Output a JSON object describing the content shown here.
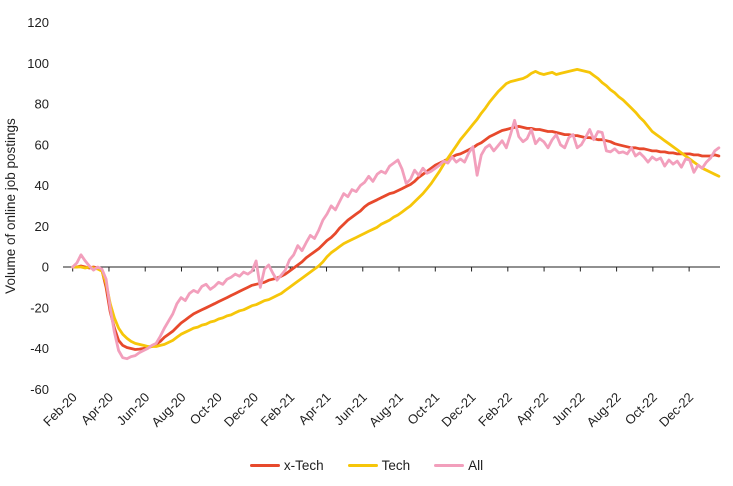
{
  "chart_data": {
    "type": "line",
    "title": "",
    "ylabel": "Volume of online job postings",
    "xlabel": "",
    "ylim": [
      -60,
      120
    ],
    "yticks": [
      120,
      100,
      80,
      60,
      40,
      20,
      0,
      -20,
      -40,
      -60
    ],
    "x_tick_labels": [
      "Feb-20",
      "Apr-20",
      "Jun-20",
      "Aug-20",
      "Oct-20",
      "Dec-20",
      "Feb-21",
      "Apr-21",
      "Jun-21",
      "Aug-21",
      "Oct-21",
      "Dec-21",
      "Feb-22",
      "Apr-22",
      "Jun-22",
      "Aug-22",
      "Oct-22",
      "Dec-22"
    ],
    "x_tick_every_months": 2,
    "x_resolution": "weekly",
    "grid": false,
    "legend_position": "bottom",
    "axis_color": "#212121",
    "series": [
      {
        "name": "x-Tech",
        "color": "#E7492C",
        "values": [
          0,
          0,
          0.5,
          0,
          -0.5,
          0,
          -0.5,
          -1.5,
          -10,
          -22,
          -30,
          -36,
          -38.5,
          -39.5,
          -40,
          -40.5,
          -40.3,
          -40,
          -39.5,
          -39,
          -38,
          -36.5,
          -34.5,
          -33,
          -31.5,
          -29.5,
          -27.5,
          -26,
          -24.5,
          -23,
          -22,
          -21,
          -20,
          -19,
          -18,
          -17,
          -16,
          -15,
          -14,
          -13,
          -12,
          -11,
          -10,
          -9,
          -8.5,
          -8,
          -7.5,
          -6.5,
          -6,
          -5.5,
          -4.5,
          -3.5,
          -2,
          -0.5,
          1,
          2.5,
          4.5,
          6,
          7.5,
          9,
          11,
          13,
          14.5,
          16.5,
          19,
          21,
          23,
          24.5,
          26,
          27.5,
          29.5,
          31,
          32,
          33,
          34,
          35,
          36,
          36.5,
          37.5,
          38.5,
          39.5,
          40.5,
          42,
          44,
          45.5,
          47,
          48.5,
          50,
          51,
          52,
          53,
          54,
          55,
          55.5,
          56.5,
          57.5,
          58.5,
          60,
          61,
          62.5,
          64,
          65,
          66,
          67,
          67.5,
          68,
          68.5,
          69,
          68.5,
          68,
          68,
          67.5,
          67.5,
          67,
          66.5,
          66.5,
          66,
          65.5,
          65,
          65,
          64.5,
          64.5,
          64,
          63.5,
          63.5,
          63,
          62.5,
          62.5,
          62,
          61.5,
          60.5,
          60,
          59.5,
          59,
          58.5,
          58.5,
          58,
          58,
          57.5,
          57,
          57,
          56.5,
          56.5,
          56,
          56,
          55.5,
          55.5,
          55.5,
          55.5,
          55,
          55,
          54.5,
          54.5,
          54.5,
          55,
          54.5
        ]
      },
      {
        "name": "Tech",
        "color": "#F6C609",
        "values": [
          0,
          0,
          0,
          -0.5,
          0,
          -0.5,
          -1,
          -2,
          -8,
          -18,
          -25,
          -30,
          -33,
          -35,
          -36.5,
          -37.5,
          -38,
          -38.5,
          -39,
          -39,
          -39,
          -38.5,
          -38,
          -37,
          -36,
          -34.5,
          -33,
          -32,
          -31,
          -30,
          -29.5,
          -28.5,
          -28,
          -27,
          -26.5,
          -25.5,
          -25,
          -24,
          -23.5,
          -22.5,
          -21.5,
          -21,
          -20,
          -19,
          -18.5,
          -17.5,
          -16.5,
          -16,
          -15,
          -14,
          -13,
          -11.5,
          -10,
          -8.5,
          -7,
          -5.5,
          -4,
          -2.5,
          -1,
          0.5,
          2.5,
          5,
          7,
          8.5,
          10,
          11.5,
          12.5,
          13.5,
          14.5,
          15.5,
          16.5,
          17.5,
          18.5,
          19.5,
          21,
          22,
          23,
          24.5,
          25.5,
          27,
          28.5,
          30,
          32,
          34,
          36,
          38.5,
          41,
          44,
          47,
          50.5,
          53.5,
          56.5,
          59.5,
          62.5,
          65,
          67.5,
          70,
          72.5,
          75.5,
          78,
          81,
          83.5,
          86,
          88,
          90,
          91,
          91.5,
          92,
          92.5,
          93.5,
          95,
          96,
          95,
          94.5,
          95,
          95.5,
          94.5,
          95,
          95.5,
          96,
          96.5,
          97,
          96.5,
          96,
          95.5,
          94,
          92.5,
          90.5,
          89,
          87,
          85.5,
          83.5,
          82,
          80,
          78,
          76,
          73.5,
          71.5,
          69,
          66.5,
          65,
          63.5,
          62,
          60.5,
          59,
          57.5,
          56,
          54.5,
          53,
          51.5,
          50,
          48.5,
          47.5,
          46.5,
          45.5,
          44.5
        ]
      },
      {
        "name": "All",
        "color": "#F29FBC",
        "values": [
          0,
          2,
          6,
          3,
          0.5,
          -1.5,
          0,
          -1,
          -6,
          -20,
          -32,
          -41,
          -44.5,
          -45,
          -44,
          -43.5,
          -42,
          -41,
          -40,
          -38.5,
          -37.5,
          -34,
          -30,
          -26.5,
          -23,
          -18,
          -15,
          -16.5,
          -13,
          -11.5,
          -12.5,
          -9.5,
          -8.5,
          -11,
          -9.5,
          -7.5,
          -8.5,
          -6,
          -5,
          -3.5,
          -4.5,
          -2.5,
          -3.5,
          -2,
          3,
          -10,
          -1,
          1,
          -3,
          -6.5,
          -4,
          -1.5,
          3.5,
          6,
          10.5,
          8,
          12,
          15.5,
          14,
          18,
          23,
          26,
          30,
          28,
          32,
          36,
          34.5,
          38,
          37,
          40,
          41.5,
          44.5,
          42,
          45.5,
          47,
          46,
          49.5,
          51,
          52.5,
          48,
          41,
          43,
          47.5,
          45,
          48.5,
          46,
          47,
          48.5,
          50,
          52,
          51,
          54,
          51.5,
          53,
          51.5,
          56,
          59,
          45,
          55,
          58.5,
          60,
          57,
          59.5,
          62,
          58.5,
          65,
          72,
          64,
          61.5,
          63,
          67.5,
          60.5,
          63,
          61.5,
          58.5,
          62.5,
          65,
          60,
          58.5,
          63.5,
          65,
          58.5,
          60,
          63.5,
          67.5,
          62.5,
          66.5,
          66,
          57,
          56.5,
          58,
          56,
          56.5,
          55.5,
          58.5,
          54.5,
          56,
          54,
          51.5,
          54,
          52.5,
          53.5,
          49.5,
          52.5,
          50.5,
          52,
          49,
          53,
          52.5,
          46.5,
          50,
          48.5,
          51.5,
          53.5,
          57,
          58.5
        ]
      }
    ]
  }
}
